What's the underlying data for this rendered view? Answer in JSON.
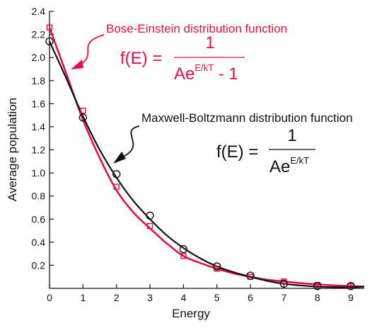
{
  "chart_data": {
    "type": "line",
    "title": "",
    "xlabel": "Energy",
    "ylabel": "Average population",
    "xlim": [
      0,
      9.4
    ],
    "ylim": [
      0,
      2.4
    ],
    "x_ticks": [
      "0",
      "1",
      "2",
      "3",
      "4",
      "5",
      "6",
      "7",
      "8",
      "9"
    ],
    "y_ticks": [
      "0.2",
      "0.4",
      "0.6",
      "0.8",
      "1.0",
      "1.2",
      "1.4",
      "1.6",
      "1.8",
      "2.0",
      "2.2",
      "2.4"
    ],
    "grid": false,
    "series": [
      {
        "name": "Bose-Einstein distribution function",
        "color": "#e0104a",
        "marker": "square",
        "x": [
          0,
          1,
          2,
          3,
          4,
          5,
          6,
          7,
          8,
          9
        ],
        "y": [
          2.26,
          1.54,
          0.88,
          0.54,
          0.28,
          0.17,
          0.1,
          0.06,
          0.03,
          0.02
        ],
        "curve": [
          [
            0,
            2.26
          ],
          [
            0.5,
            1.86
          ],
          [
            1,
            1.46
          ],
          [
            1.5,
            1.13
          ],
          [
            2,
            0.85
          ],
          [
            2.5,
            0.66
          ],
          [
            3,
            0.52
          ],
          [
            3.5,
            0.39
          ],
          [
            4,
            0.28
          ],
          [
            4.5,
            0.22
          ],
          [
            5,
            0.17
          ],
          [
            5.5,
            0.13
          ],
          [
            6,
            0.1
          ],
          [
            6.5,
            0.075
          ],
          [
            7,
            0.06
          ],
          [
            7.5,
            0.045
          ],
          [
            8,
            0.035
          ],
          [
            8.5,
            0.025
          ],
          [
            9,
            0.02
          ],
          [
            9.4,
            0.015
          ]
        ]
      },
      {
        "name": "Maxwell-Boltzmann distribution function",
        "color": "#111111",
        "marker": "circle",
        "x": [
          0,
          1,
          2,
          3,
          4,
          5,
          6,
          7,
          8,
          9
        ],
        "y": [
          2.14,
          1.48,
          0.99,
          0.63,
          0.34,
          0.19,
          0.11,
          0.04,
          0.02,
          0.02
        ],
        "curve": [
          [
            0,
            2.14
          ],
          [
            0.5,
            1.82
          ],
          [
            1,
            1.49
          ],
          [
            1.5,
            1.2
          ],
          [
            2,
            0.96
          ],
          [
            2.5,
            0.76
          ],
          [
            3,
            0.6
          ],
          [
            3.5,
            0.46
          ],
          [
            4,
            0.35
          ],
          [
            4.5,
            0.26
          ],
          [
            5,
            0.19
          ],
          [
            5.5,
            0.14
          ],
          [
            6,
            0.1
          ],
          [
            6.5,
            0.065
          ],
          [
            7,
            0.04
          ],
          [
            7.5,
            0.025
          ],
          [
            8,
            0.015
          ],
          [
            8.5,
            0.01
          ],
          [
            9,
            0.01
          ],
          [
            9.4,
            0.015
          ]
        ]
      }
    ],
    "annotations": {
      "bose": {
        "label": "Bose-Einstein distribution function",
        "formula_lhs": "f(E) =",
        "numerator": "1",
        "denominator_base": "Ae",
        "denominator_exp": "E/kT",
        "denominator_tail": " - 1"
      },
      "maxwell": {
        "label": "Maxwell-Boltzmann distribution function",
        "formula_lhs": "f(E) =",
        "numerator": "1",
        "denominator_base": "Ae",
        "denominator_exp": "E/kT"
      }
    }
  }
}
